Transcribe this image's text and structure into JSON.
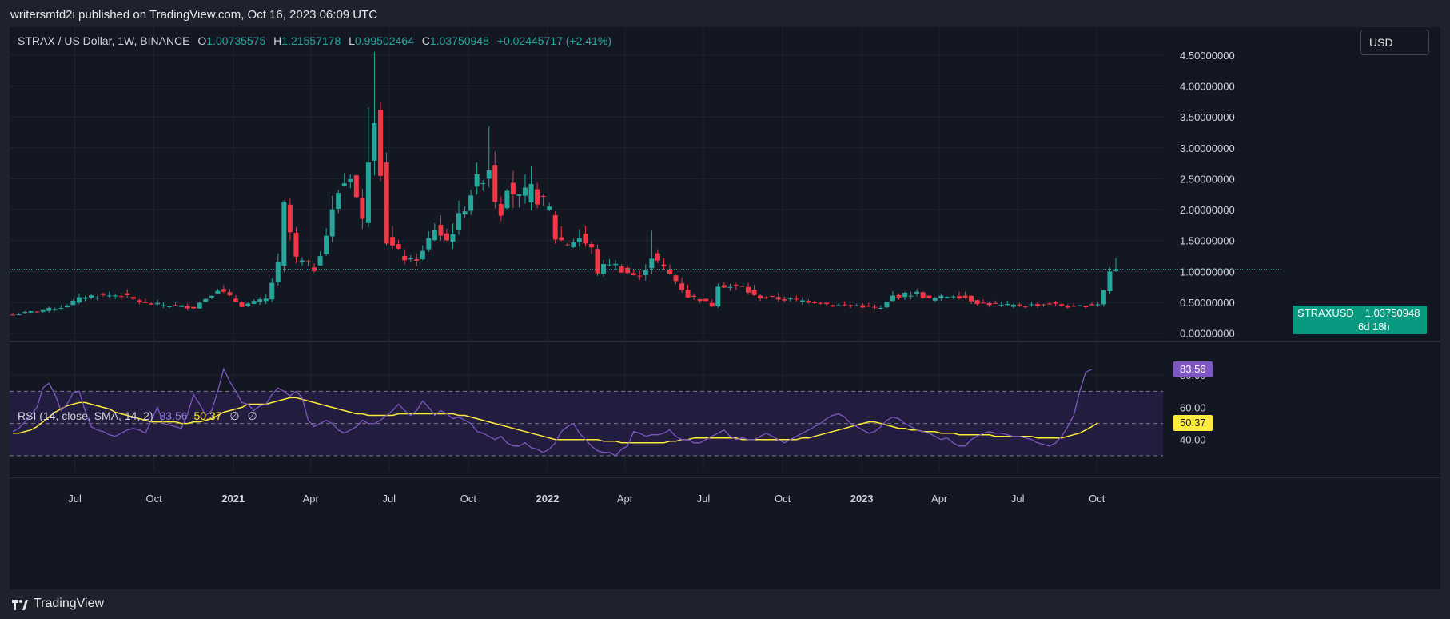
{
  "header": {
    "publisher_line": "writersmfd2i published on TradingView.com, Oct 16, 2023 06:09 UTC"
  },
  "legend": {
    "symbol": "STRAX / US Dollar, 1W, BINANCE",
    "open_label": "O",
    "open": "1.00735575",
    "high_label": "H",
    "high": "1.21557178",
    "low_label": "L",
    "low": "0.99502464",
    "close_label": "C",
    "close": "1.03750948",
    "change": "+0.02445717 (+2.41%)"
  },
  "currency_button": "USD",
  "price_label": {
    "ticker": "STRAXUSD",
    "price": "1.03750948",
    "countdown": "6d 18h"
  },
  "rsi_legend": {
    "name": "RSI (14, close, SMA, 14, 2)",
    "rsi_value": "83.56",
    "sma_value": "50.37",
    "off1": "∅",
    "off2": "∅"
  },
  "footer": {
    "brand": "TradingView"
  },
  "colors": {
    "background": "#131722",
    "up": "#26a69a",
    "down": "#f23645",
    "rsi_line": "#7e57c2",
    "rsi_sma": "#ffeb3b",
    "rsi_band": "#2a1f4a",
    "grid": "#1f2330"
  },
  "chart_data": [
    {
      "type": "candlestick",
      "title": "STRAX / US Dollar, 1W, BINANCE",
      "y_axis_labels": [
        "4.50000000",
        "4.00000000",
        "3.50000000",
        "3.00000000",
        "2.50000000",
        "2.00000000",
        "1.50000000",
        "1.00000000",
        "0.50000000",
        "0.00000000"
      ],
      "y_ticks": [
        4.5,
        4.0,
        3.5,
        3.0,
        2.5,
        2.0,
        1.5,
        1.0,
        0.5,
        0.0
      ],
      "ylim": [
        -0.12,
        4.95
      ],
      "x_axis_labels": [
        "Jul",
        "Oct",
        "2021",
        "Apr",
        "Jul",
        "Oct",
        "2022",
        "Apr",
        "Jul",
        "Oct",
        "2023",
        "Apr",
        "Jul",
        "Oct"
      ],
      "x_axis_dates": [
        "2020-07-01",
        "2020-10-01",
        "2021-01-01",
        "2021-04-01",
        "2021-07-01",
        "2021-10-01",
        "2022-01-01",
        "2022-04-01",
        "2022-07-01",
        "2022-10-01",
        "2023-01-01",
        "2023-04-01",
        "2023-07-01",
        "2023-10-01"
      ],
      "x_start": "2020-04-20",
      "week_keypoints": [
        [
          0,
          0.3
        ],
        [
          8,
          0.42
        ],
        [
          12,
          0.6
        ],
        [
          18,
          0.62
        ],
        [
          22,
          0.48
        ],
        [
          30,
          0.42
        ],
        [
          34,
          0.72
        ],
        [
          38,
          0.45
        ],
        [
          42,
          0.55
        ],
        [
          44,
          1.1
        ],
        [
          45,
          2.05
        ],
        [
          47,
          1.2
        ],
        [
          50,
          1.05
        ],
        [
          52,
          1.6
        ],
        [
          54,
          2.3
        ],
        [
          56,
          2.6
        ],
        [
          58,
          1.8
        ],
        [
          59,
          2.9
        ],
        [
          60,
          3.6
        ],
        [
          61,
          2.7
        ],
        [
          62,
          1.5
        ],
        [
          64,
          1.3
        ],
        [
          66,
          1.15
        ],
        [
          68,
          1.3
        ],
        [
          70,
          1.7
        ],
        [
          72,
          1.5
        ],
        [
          74,
          1.85
        ],
        [
          76,
          2.3
        ],
        [
          79,
          2.7
        ],
        [
          80,
          2.2
        ],
        [
          81,
          2.0
        ],
        [
          82,
          2.45
        ],
        [
          84,
          2.15
        ],
        [
          86,
          2.3
        ],
        [
          88,
          2.1
        ],
        [
          89,
          2.0
        ],
        [
          90,
          1.55
        ],
        [
          92,
          1.45
        ],
        [
          94,
          1.55
        ],
        [
          96,
          1.35
        ],
        [
          97,
          1.0
        ],
        [
          99,
          1.15
        ],
        [
          102,
          0.98
        ],
        [
          104,
          0.9
        ],
        [
          106,
          1.25
        ],
        [
          108,
          1.05
        ],
        [
          110,
          0.85
        ],
        [
          112,
          0.6
        ],
        [
          114,
          0.55
        ],
        [
          116,
          0.45
        ],
        [
          117,
          0.8
        ],
        [
          119,
          0.75
        ],
        [
          121,
          0.75
        ],
        [
          123,
          0.6
        ],
        [
          128,
          0.55
        ],
        [
          132,
          0.52
        ],
        [
          134,
          0.5
        ],
        [
          136,
          0.45
        ],
        [
          140,
          0.45
        ],
        [
          144,
          0.4
        ],
        [
          146,
          0.6
        ],
        [
          150,
          0.65
        ],
        [
          152,
          0.55
        ],
        [
          154,
          0.58
        ],
        [
          156,
          0.62
        ],
        [
          158,
          0.58
        ],
        [
          160,
          0.5
        ],
        [
          164,
          0.45
        ],
        [
          168,
          0.45
        ],
        [
          172,
          0.48
        ],
        [
          176,
          0.42
        ],
        [
          178,
          0.45
        ],
        [
          180,
          0.48
        ],
        [
          181,
          0.7
        ],
        [
          182,
          1.0
        ],
        [
          183,
          1.04
        ]
      ]
    },
    {
      "type": "line",
      "title": "RSI (14, close, SMA, 14, 2)",
      "series": [
        {
          "name": "RSI",
          "values": [
            45,
            47,
            51,
            55,
            60,
            72,
            75,
            68,
            58,
            62,
            69,
            70,
            58,
            48,
            46,
            45,
            43,
            42,
            44,
            46,
            47,
            46,
            44,
            52,
            60,
            50,
            49,
            48,
            47,
            56,
            68,
            62,
            55,
            58,
            70,
            84,
            76,
            70,
            63,
            62,
            58,
            61,
            62,
            68,
            72,
            70,
            67,
            70,
            66,
            52,
            48,
            50,
            52,
            50,
            46,
            44,
            46,
            48,
            52,
            50,
            50,
            52,
            55,
            58,
            62,
            58,
            55,
            58,
            64,
            60,
            55,
            58,
            56,
            53,
            54,
            52,
            50,
            45,
            44,
            42,
            40,
            42,
            38,
            36,
            36,
            38,
            35,
            34,
            32,
            34,
            38,
            45,
            48,
            50,
            44,
            40,
            36,
            33,
            32,
            32,
            30,
            34,
            36,
            45,
            44,
            42,
            43,
            43,
            44,
            46,
            42,
            40,
            40,
            38,
            38,
            40,
            42,
            44,
            46,
            42,
            40,
            41,
            40,
            40,
            42,
            44,
            42,
            40,
            38,
            40,
            42,
            44,
            46,
            48,
            50,
            53,
            55,
            56,
            54,
            50,
            48,
            46,
            44,
            45,
            48,
            52,
            54,
            53,
            50,
            48,
            46,
            45,
            44,
            42,
            40,
            41,
            38,
            36,
            36,
            40,
            42,
            44,
            45,
            44,
            44,
            43,
            42,
            42,
            41,
            40,
            38,
            37,
            36,
            38,
            42,
            48,
            55,
            70,
            82,
            83.56
          ]
        },
        {
          "name": "SMA",
          "values": [
            44,
            44,
            45,
            46,
            48,
            51,
            54,
            57,
            59,
            61,
            62,
            63,
            63,
            62,
            61,
            60,
            59,
            57,
            56,
            55,
            54,
            53,
            52,
            51,
            51,
            51,
            51,
            51,
            50,
            50,
            51,
            51,
            52,
            53,
            55,
            57,
            58,
            59,
            60,
            62,
            62,
            62,
            62,
            63,
            64,
            65,
            66,
            66,
            65,
            64,
            63,
            62,
            61,
            60,
            59,
            58,
            57,
            56,
            56,
            55,
            55,
            55,
            55,
            55,
            56,
            56,
            56,
            56,
            56,
            56,
            56,
            56,
            56,
            56,
            55,
            55,
            54,
            53,
            52,
            51,
            50,
            49,
            48,
            47,
            46,
            45,
            44,
            43,
            42,
            41,
            40,
            40,
            40,
            40,
            40,
            40,
            40,
            40,
            39,
            39,
            39,
            38,
            38,
            38,
            38,
            38,
            38,
            38,
            38,
            39,
            39,
            40,
            40,
            41,
            41,
            41,
            41,
            41,
            41,
            41,
            41,
            40,
            40,
            40,
            40,
            40,
            40,
            40,
            40,
            40,
            40,
            41,
            41,
            42,
            43,
            44,
            45,
            46,
            47,
            48,
            49,
            50,
            51,
            51,
            50,
            49,
            48,
            47,
            47,
            46,
            46,
            45,
            45,
            45,
            44,
            44,
            44,
            43,
            43,
            43,
            43,
            43,
            43,
            42,
            42,
            42,
            42,
            42,
            42,
            42,
            41,
            41,
            41,
            41,
            41,
            42,
            43,
            44,
            46,
            48,
            50.37
          ]
        }
      ],
      "y_axis_labels": [
        "80.00",
        "60.00",
        "40.00"
      ],
      "y_ticks": [
        80,
        60,
        40
      ],
      "ylim": [
        20.5,
        96.5
      ],
      "band": [
        30,
        70
      ],
      "midline": 50
    }
  ]
}
